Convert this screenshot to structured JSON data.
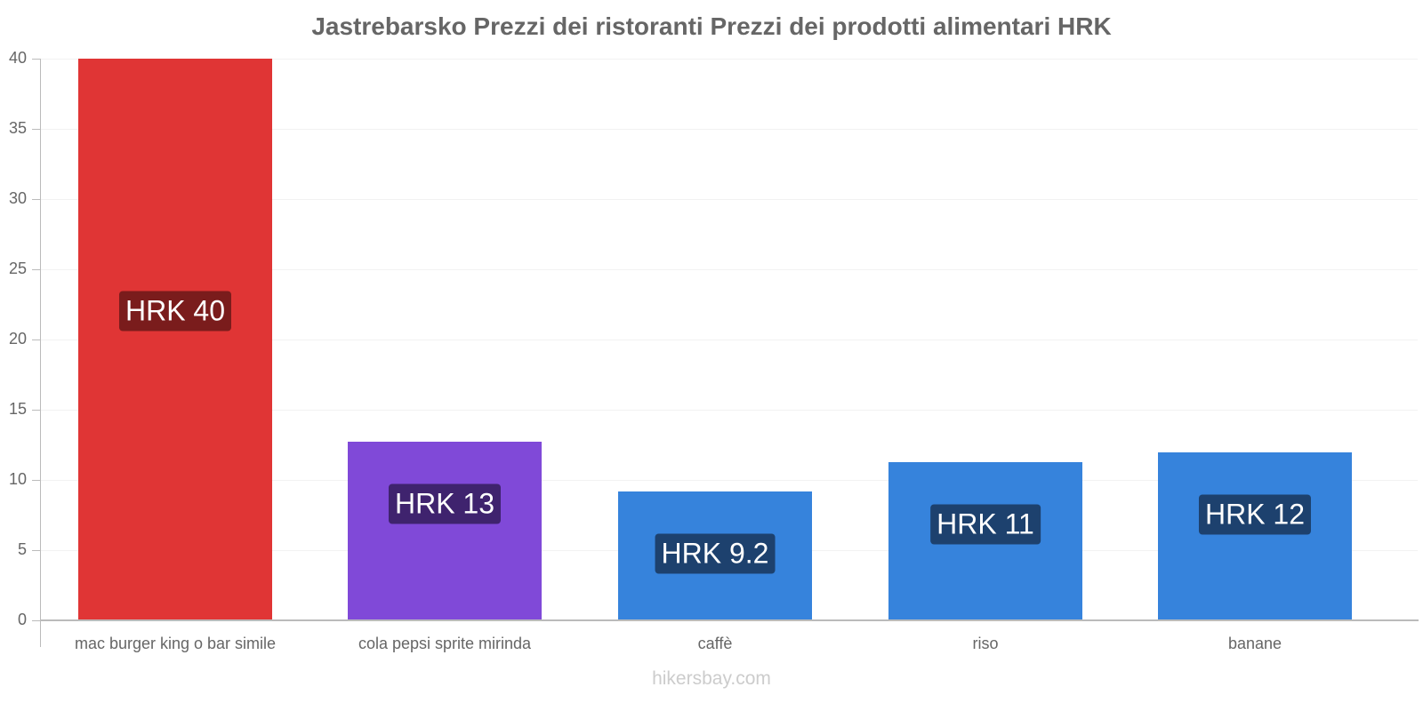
{
  "title": "Jastrebarsko Prezzi dei ristoranti Prezzi dei prodotti alimentari HRK",
  "footer": "hikersbay.com",
  "yticks": [
    "0",
    "5",
    "10",
    "15",
    "20",
    "25",
    "30",
    "35",
    "40"
  ],
  "bars": [
    {
      "category": "mac burger king o bar simile",
      "value": 40,
      "label": "HRK 40",
      "color": "#e03535",
      "label_bg": "#7a1c1c"
    },
    {
      "category": "cola pepsi sprite mirinda",
      "value": 12.75,
      "label": "HRK 13",
      "color": "#8049d8",
      "label_bg": "#3f236e"
    },
    {
      "category": "caffè",
      "value": 9.15,
      "label": "HRK 9.2",
      "color": "#3683dc",
      "label_bg": "#1d416e"
    },
    {
      "category": "riso",
      "value": 11.25,
      "label": "HRK 11",
      "color": "#3683dc",
      "label_bg": "#1d416e"
    },
    {
      "category": "banane",
      "value": 11.95,
      "label": "HRK 12",
      "color": "#3683dc",
      "label_bg": "#1d416e"
    }
  ],
  "chart_data": {
    "type": "bar",
    "title": "Jastrebarsko Prezzi dei ristoranti Prezzi dei prodotti alimentari HRK",
    "categories": [
      "mac burger king o bar simile",
      "cola pepsi sprite mirinda",
      "caffè",
      "riso",
      "banane"
    ],
    "values": [
      40,
      12.75,
      9.15,
      11.25,
      11.95
    ],
    "data_labels": [
      "HRK 40",
      "HRK 13",
      "HRK 9.2",
      "HRK 11",
      "HRK 12"
    ],
    "xlabel": "",
    "ylabel": "",
    "ylim": [
      0,
      40
    ],
    "yticks": [
      0,
      5,
      10,
      15,
      20,
      25,
      30,
      35,
      40
    ],
    "grid": true,
    "legend": "none",
    "colors": [
      "#e03535",
      "#8049d8",
      "#3683dc",
      "#3683dc",
      "#3683dc"
    ]
  }
}
